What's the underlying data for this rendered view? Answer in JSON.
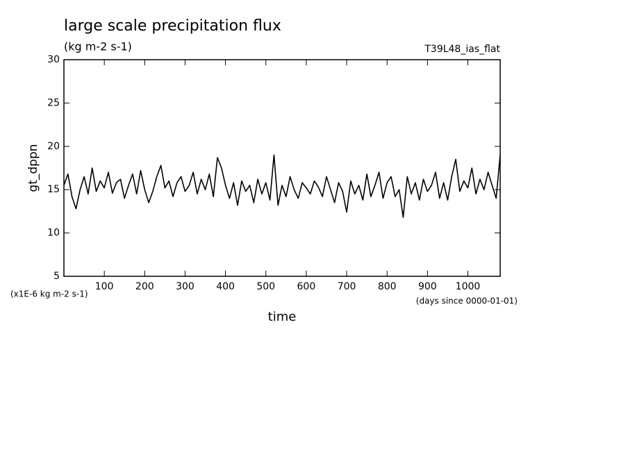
{
  "chart_data": {
    "type": "line",
    "title": "large scale precipitation flux",
    "subtitle": "(kg m-2 s-1)",
    "run_label": "T39L48_ias_flat",
    "y_label": "gt_dppn",
    "y_unit_note": "(x1E-6 kg m-2 s-1)",
    "x_label": "time",
    "x_unit_note": "(days since 0000-01-01)",
    "xlim": [
      0,
      1080
    ],
    "ylim": [
      5,
      30
    ],
    "xticks": [
      100,
      200,
      300,
      400,
      500,
      600,
      700,
      800,
      900,
      1000
    ],
    "yticks": [
      5,
      10,
      15,
      20,
      25,
      30
    ],
    "x": [
      0,
      10,
      20,
      30,
      40,
      50,
      60,
      70,
      80,
      90,
      100,
      110,
      120,
      130,
      140,
      150,
      160,
      170,
      180,
      190,
      200,
      210,
      220,
      230,
      240,
      250,
      260,
      270,
      280,
      290,
      300,
      310,
      320,
      330,
      340,
      350,
      360,
      370,
      380,
      390,
      400,
      410,
      420,
      430,
      440,
      450,
      460,
      470,
      480,
      490,
      500,
      510,
      520,
      530,
      540,
      550,
      560,
      570,
      580,
      590,
      600,
      610,
      620,
      630,
      640,
      650,
      660,
      670,
      680,
      690,
      700,
      710,
      720,
      730,
      740,
      750,
      760,
      770,
      780,
      790,
      800,
      810,
      820,
      830,
      840,
      850,
      860,
      870,
      880,
      890,
      900,
      910,
      920,
      930,
      940,
      950,
      960,
      970,
      980,
      990,
      1000,
      1010,
      1020,
      1030,
      1040,
      1050,
      1060,
      1070,
      1080
    ],
    "series": [
      {
        "color": "#000000",
        "values": [
          15.5,
          16.8,
          14.2,
          12.8,
          15.0,
          16.5,
          14.5,
          17.5,
          14.8,
          16.0,
          15.2,
          17.0,
          14.6,
          15.8,
          16.2,
          14.0,
          15.5,
          16.8,
          14.5,
          17.2,
          15.0,
          13.5,
          14.8,
          16.5,
          17.8,
          15.2,
          16.0,
          14.2,
          15.8,
          16.5,
          14.8,
          15.5,
          17.0,
          14.5,
          16.2,
          15.0,
          16.8,
          14.2,
          18.7,
          17.5,
          15.5,
          14.0,
          15.8,
          13.2,
          16.0,
          14.8,
          15.5,
          13.5,
          16.2,
          14.5,
          15.8,
          13.8,
          19.0,
          13.2,
          15.5,
          14.2,
          16.5,
          15.0,
          14.0,
          15.8,
          15.2,
          14.5,
          16.0,
          15.3,
          14.2,
          16.5,
          15.0,
          13.5,
          15.8,
          14.8,
          12.4,
          16.0,
          14.5,
          15.5,
          13.8,
          16.8,
          14.2,
          15.5,
          17.0,
          14.0,
          15.8,
          16.5,
          14.2,
          15.0,
          11.8,
          16.5,
          14.5,
          15.8,
          13.8,
          16.2,
          14.8,
          15.5,
          17.0,
          14.0,
          15.8,
          13.8,
          16.5,
          18.5,
          14.8,
          16.0,
          15.2,
          17.5,
          14.5,
          16.2,
          15.0,
          17.0,
          15.5,
          14.0,
          19.0
        ]
      }
    ]
  }
}
